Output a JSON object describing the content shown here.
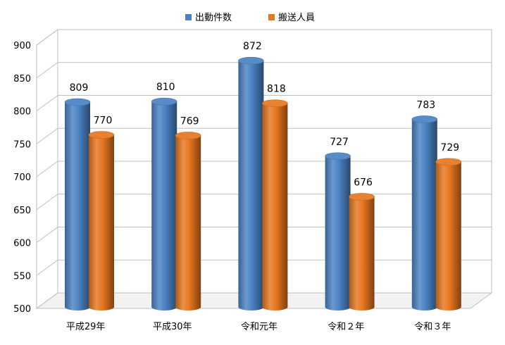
{
  "chart_data": {
    "type": "bar",
    "title": "",
    "xlabel": "",
    "ylabel": "",
    "categories": [
      "平成29年",
      "平成30年",
      "令和元年",
      "令和２年",
      "令和３年"
    ],
    "series": [
      {
        "name": "出動件数",
        "values": [
          809,
          810,
          872,
          727,
          783
        ],
        "color": "#4a82c3"
      },
      {
        "name": "搬送人員",
        "values": [
          770,
          769,
          818,
          676,
          729
        ],
        "color": "#e6761f"
      }
    ],
    "ylim": [
      500,
      900
    ],
    "yticks": [
      500,
      550,
      600,
      650,
      700,
      750,
      800,
      850,
      900
    ],
    "data_labels": true,
    "grid": true,
    "legend_position": "top",
    "style": "3d-cylinder"
  }
}
